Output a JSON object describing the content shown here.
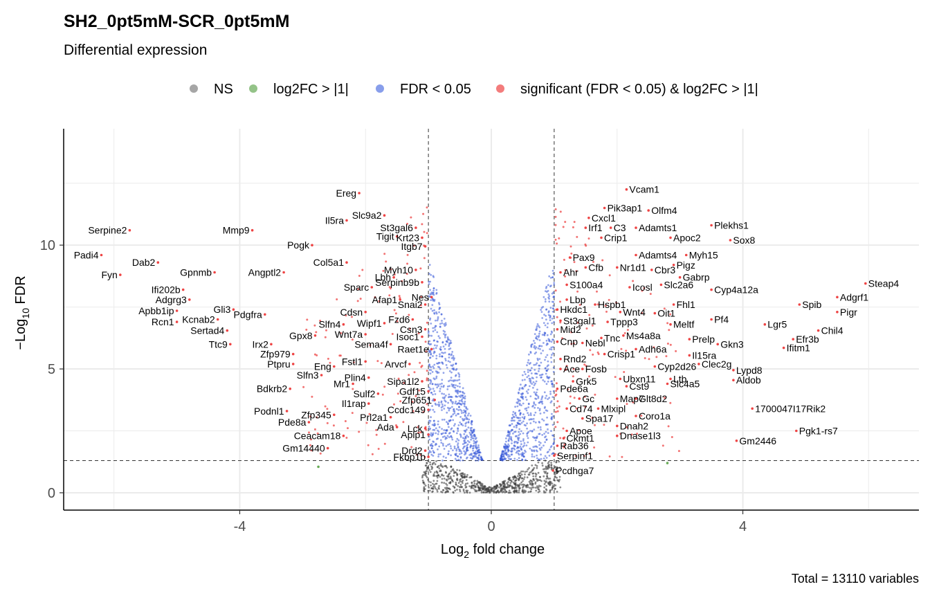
{
  "chart_data": {
    "type": "scatter",
    "title": "SH2_0pt5mM-SCR_0pt5mM",
    "subtitle": "Differential expression",
    "xlabel_main": "Log",
    "xlabel_sub": "2",
    "xlabel_rest": " fold change",
    "ylabel_prefix": "−Log",
    "ylabel_sub": "10",
    "ylabel_rest": " FDR",
    "caption": "Total = 13110 variables",
    "xlim": [
      -6.8,
      6.8
    ],
    "ylim": [
      -0.7,
      14.7
    ],
    "x_ticks": [
      -4,
      0,
      4
    ],
    "x_tick_labels": [
      "-4",
      "0",
      "4"
    ],
    "y_ticks": [
      0,
      5,
      10
    ],
    "y_tick_labels": [
      "0",
      "5",
      "10"
    ],
    "grid": true,
    "fc_cutoff": 1,
    "fdr_cutoff_log10": 1.3,
    "legend_position": "top",
    "legend": [
      {
        "name": "NS",
        "color": "#808080"
      },
      {
        "name": "log2FC > |1|",
        "color": "#66aa55"
      },
      {
        "name": "FDR < 0.05",
        "color": "#5575e3"
      },
      {
        "name": "significant (FDR < 0.05) & log2FC > |1|",
        "color": "#ee4444"
      }
    ],
    "background_clouds": [
      {
        "name": "NS",
        "color": "#404040",
        "shape": "ns"
      },
      {
        "name": "FDR < 0.05",
        "color": "#3a5bd9",
        "shape": "volcano"
      }
    ],
    "labeled_points": [
      {
        "label": "Vcam1",
        "x": 2.15,
        "y": 12.25
      },
      {
        "label": "Pik3ap1",
        "x": 1.8,
        "y": 11.5
      },
      {
        "label": "Olfm4",
        "x": 2.5,
        "y": 11.4
      },
      {
        "label": "Cxcl1",
        "x": 1.55,
        "y": 11.1
      },
      {
        "label": "Irf1",
        "x": 1.5,
        "y": 10.7
      },
      {
        "label": "C3",
        "x": 1.9,
        "y": 10.7
      },
      {
        "label": "Adamts1",
        "x": 2.3,
        "y": 10.7
      },
      {
        "label": "Plekhs1",
        "x": 3.5,
        "y": 10.8
      },
      {
        "label": "Crip1",
        "x": 1.75,
        "y": 10.3
      },
      {
        "label": "Apoc2",
        "x": 2.85,
        "y": 10.3
      },
      {
        "label": "Sox8",
        "x": 3.8,
        "y": 10.2
      },
      {
        "label": "Adamts4",
        "x": 2.3,
        "y": 9.6
      },
      {
        "label": "Myh15",
        "x": 3.1,
        "y": 9.6
      },
      {
        "label": "Pax9",
        "x": 1.25,
        "y": 9.5
      },
      {
        "label": "Pigz",
        "x": 2.9,
        "y": 9.2
      },
      {
        "label": "Cfb",
        "x": 1.5,
        "y": 9.1
      },
      {
        "label": "Nr1d1",
        "x": 2.0,
        "y": 9.1
      },
      {
        "label": "Cbr3",
        "x": 2.55,
        "y": 9.0
      },
      {
        "label": "Ahr",
        "x": 1.1,
        "y": 8.9
      },
      {
        "label": "Gabrp",
        "x": 3.0,
        "y": 8.7
      },
      {
        "label": "S100a4",
        "x": 1.2,
        "y": 8.4
      },
      {
        "label": "Icosl",
        "x": 2.2,
        "y": 8.3
      },
      {
        "label": "Slc2a6",
        "x": 2.7,
        "y": 8.4
      },
      {
        "label": "Cyp4a12a",
        "x": 3.5,
        "y": 8.2
      },
      {
        "label": "Lbp",
        "x": 1.2,
        "y": 7.8
      },
      {
        "label": "Hspb1",
        "x": 1.65,
        "y": 7.6
      },
      {
        "label": "Fhl1",
        "x": 2.9,
        "y": 7.6
      },
      {
        "label": "Hkdc1",
        "x": 1.05,
        "y": 7.4
      },
      {
        "label": "Wnt4",
        "x": 2.05,
        "y": 7.3
      },
      {
        "label": "Oit1",
        "x": 2.6,
        "y": 7.25
      },
      {
        "label": "Steap4",
        "x": 5.95,
        "y": 8.45
      },
      {
        "label": "Adgrf1",
        "x": 5.5,
        "y": 7.9
      },
      {
        "label": "Spib",
        "x": 4.9,
        "y": 7.6
      },
      {
        "label": "Pigr",
        "x": 5.5,
        "y": 7.3
      },
      {
        "label": "Pf4",
        "x": 3.5,
        "y": 7.0
      },
      {
        "label": "St3gal1",
        "x": 1.1,
        "y": 6.95
      },
      {
        "label": "Tppp3",
        "x": 1.85,
        "y": 6.9
      },
      {
        "label": "Meltf",
        "x": 2.85,
        "y": 6.8
      },
      {
        "label": "Lgr5",
        "x": 4.35,
        "y": 6.8
      },
      {
        "label": "Mid2",
        "x": 1.05,
        "y": 6.6
      },
      {
        "label": "Chil4",
        "x": 5.2,
        "y": 6.55
      },
      {
        "label": "Ms4a8a",
        "x": 2.1,
        "y": 6.35
      },
      {
        "label": "Tnc",
        "x": 1.75,
        "y": 6.25
      },
      {
        "label": "Prelp",
        "x": 3.15,
        "y": 6.2
      },
      {
        "label": "Efr3b",
        "x": 4.8,
        "y": 6.2
      },
      {
        "label": "Cnp",
        "x": 1.05,
        "y": 6.1
      },
      {
        "label": "Nebl",
        "x": 1.45,
        "y": 6.05
      },
      {
        "label": "Gkn3",
        "x": 3.6,
        "y": 6.0
      },
      {
        "label": "Adh6a",
        "x": 2.3,
        "y": 5.8
      },
      {
        "label": "Ifitm1",
        "x": 4.65,
        "y": 5.85
      },
      {
        "label": "Crisp1",
        "x": 1.8,
        "y": 5.6
      },
      {
        "label": "Il15ra",
        "x": 3.15,
        "y": 5.55
      },
      {
        "label": "Rnd2",
        "x": 1.1,
        "y": 5.4
      },
      {
        "label": "Clec2g",
        "x": 3.3,
        "y": 5.2
      },
      {
        "label": "Cyp2d26",
        "x": 2.6,
        "y": 5.1
      },
      {
        "label": "Ace",
        "x": 1.1,
        "y": 5.0
      },
      {
        "label": "Fosb",
        "x": 1.45,
        "y": 5.0
      },
      {
        "label": "Lypd8",
        "x": 3.85,
        "y": 4.95
      },
      {
        "label": "Ltb",
        "x": 2.85,
        "y": 4.6
      },
      {
        "label": "Grk5",
        "x": 1.3,
        "y": 4.5
      },
      {
        "label": "Ubxn11",
        "x": 2.05,
        "y": 4.6
      },
      {
        "label": "Aldob",
        "x": 3.85,
        "y": 4.55
      },
      {
        "label": "Slc4a5",
        "x": 2.8,
        "y": 4.4
      },
      {
        "label": "Pde6a",
        "x": 1.05,
        "y": 4.2
      },
      {
        "label": "Cst9",
        "x": 2.15,
        "y": 4.3
      },
      {
        "label": "Map7",
        "x": 2.0,
        "y": 3.8
      },
      {
        "label": "Glt8d2",
        "x": 2.3,
        "y": 3.8
      },
      {
        "label": "Gc",
        "x": 1.4,
        "y": 3.8
      },
      {
        "label": "Cd74",
        "x": 1.2,
        "y": 3.4
      },
      {
        "label": "Mlxipl",
        "x": 1.7,
        "y": 3.4
      },
      {
        "label": "Coro1a",
        "x": 2.3,
        "y": 3.1
      },
      {
        "label": "Spa17",
        "x": 1.45,
        "y": 3.0
      },
      {
        "label": "Dnah2",
        "x": 2.0,
        "y": 2.7
      },
      {
        "label": "Dnase1l3",
        "x": 2.0,
        "y": 2.3
      },
      {
        "label": "Apoe",
        "x": 1.2,
        "y": 2.5
      },
      {
        "label": "Ckmt1",
        "x": 1.15,
        "y": 2.2
      },
      {
        "label": "Rab36",
        "x": 1.05,
        "y": 1.9
      },
      {
        "label": "Serpinf1",
        "x": 1.0,
        "y": 1.5
      },
      {
        "label": "Pcdhga7",
        "x": 0.98,
        "y": 0.9
      },
      {
        "label": "1700047I17Rik2",
        "x": 4.15,
        "y": 3.4
      },
      {
        "label": "Pgk1-rs7",
        "x": 4.85,
        "y": 2.5
      },
      {
        "label": "Gm2446",
        "x": 3.9,
        "y": 2.1
      },
      {
        "label": "Ereg",
        "x": -2.1,
        "y": 12.1
      },
      {
        "label": "Slc9a2",
        "x": -1.7,
        "y": 11.2
      },
      {
        "label": "Il5ra",
        "x": -2.3,
        "y": 11.0
      },
      {
        "label": "St3gal6",
        "x": -1.2,
        "y": 10.7
      },
      {
        "label": "Tigit",
        "x": -1.5,
        "y": 10.35
      },
      {
        "label": "Krt23",
        "x": -1.1,
        "y": 10.3
      },
      {
        "label": "Itgb7",
        "x": -1.05,
        "y": 9.95
      },
      {
        "label": "Serpine2",
        "x": -5.75,
        "y": 10.6
      },
      {
        "label": "Mmp9",
        "x": -3.8,
        "y": 10.6
      },
      {
        "label": "Pogk",
        "x": -2.85,
        "y": 10.0
      },
      {
        "label": "Col5a1",
        "x": -2.3,
        "y": 9.3
      },
      {
        "label": "Padi4",
        "x": -6.2,
        "y": 9.6
      },
      {
        "label": "Myh10",
        "x": -1.2,
        "y": 9.0
      },
      {
        "label": "Lbh",
        "x": -1.55,
        "y": 8.7
      },
      {
        "label": "Fyn",
        "x": -5.9,
        "y": 8.8
      },
      {
        "label": "Dab2",
        "x": -5.3,
        "y": 9.3
      },
      {
        "label": "Gpnmb",
        "x": -4.4,
        "y": 8.9
      },
      {
        "label": "Angptl2",
        "x": -3.3,
        "y": 8.9
      },
      {
        "label": "Serpinb9b",
        "x": -1.1,
        "y": 8.5
      },
      {
        "label": "Ifi202b",
        "x": -4.9,
        "y": 8.2
      },
      {
        "label": "Sparc",
        "x": -1.9,
        "y": 8.3
      },
      {
        "label": "Nes",
        "x": -0.95,
        "y": 7.9
      },
      {
        "label": "Afap1",
        "x": -1.45,
        "y": 7.8
      },
      {
        "label": "Adgrg3",
        "x": -4.8,
        "y": 7.8
      },
      {
        "label": "Snai2",
        "x": -1.05,
        "y": 7.6
      },
      {
        "label": "Gli3",
        "x": -4.1,
        "y": 7.4
      },
      {
        "label": "Apbb1ip",
        "x": -5.0,
        "y": 7.35
      },
      {
        "label": "Cdsn",
        "x": -2.0,
        "y": 7.3
      },
      {
        "label": "Pdgfra",
        "x": -3.6,
        "y": 7.2
      },
      {
        "label": "Kcnab2",
        "x": -4.35,
        "y": 7.0
      },
      {
        "label": "Fzd6",
        "x": -1.25,
        "y": 7.0
      },
      {
        "label": "Rcn1",
        "x": -5.0,
        "y": 6.9
      },
      {
        "label": "Wipf1",
        "x": -1.7,
        "y": 6.85
      },
      {
        "label": "Slfn4",
        "x": -2.35,
        "y": 6.8
      },
      {
        "label": "Csn3",
        "x": -1.05,
        "y": 6.6
      },
      {
        "label": "Sertad4",
        "x": -4.2,
        "y": 6.55
      },
      {
        "label": "Wnt7a",
        "x": -2.0,
        "y": 6.4
      },
      {
        "label": "Gpx8",
        "x": -2.8,
        "y": 6.35
      },
      {
        "label": "Isoc1",
        "x": -1.1,
        "y": 6.3
      },
      {
        "label": "Ttc9",
        "x": -4.15,
        "y": 6.0
      },
      {
        "label": "Irx2",
        "x": -3.5,
        "y": 6.0
      },
      {
        "label": "Sema4f",
        "x": -1.6,
        "y": 6.0
      },
      {
        "label": "Raet1e",
        "x": -0.95,
        "y": 5.8
      },
      {
        "label": "Zfp979",
        "x": -3.15,
        "y": 5.6
      },
      {
        "label": "Fstl1",
        "x": -2.0,
        "y": 5.3
      },
      {
        "label": "Arvcf",
        "x": -1.3,
        "y": 5.2
      },
      {
        "label": "Ptpru",
        "x": -3.15,
        "y": 5.2
      },
      {
        "label": "Eng",
        "x": -2.5,
        "y": 5.1
      },
      {
        "label": "Slfn3",
        "x": -2.7,
        "y": 4.75
      },
      {
        "label": "Plin4",
        "x": -1.95,
        "y": 4.65
      },
      {
        "label": "Sipa1l2",
        "x": -1.1,
        "y": 4.5
      },
      {
        "label": "Mr1",
        "x": -2.2,
        "y": 4.4
      },
      {
        "label": "Bdkrb2",
        "x": -3.2,
        "y": 4.2
      },
      {
        "label": "Gdf15",
        "x": -1.0,
        "y": 4.1
      },
      {
        "label": "Sulf2",
        "x": -1.8,
        "y": 4.0
      },
      {
        "label": "Zfp651",
        "x": -0.9,
        "y": 3.75
      },
      {
        "label": "Il1rap",
        "x": -1.95,
        "y": 3.6
      },
      {
        "label": "Podnl1",
        "x": -3.25,
        "y": 3.3
      },
      {
        "label": "Ccdc149",
        "x": -1.0,
        "y": 3.35
      },
      {
        "label": "Zfp345",
        "x": -2.5,
        "y": 3.15
      },
      {
        "label": "Prl2a1",
        "x": -1.6,
        "y": 3.05
      },
      {
        "label": "Ada",
        "x": -1.5,
        "y": 2.65
      },
      {
        "label": "Lck",
        "x": -1.05,
        "y": 2.6
      },
      {
        "label": "Pde8a",
        "x": -2.9,
        "y": 2.85
      },
      {
        "label": "Ceacam18",
        "x": -2.35,
        "y": 2.3
      },
      {
        "label": "Aplp1",
        "x": -1.0,
        "y": 2.35
      },
      {
        "label": "Drd2",
        "x": -1.05,
        "y": 1.7
      },
      {
        "label": "Fkbp1b",
        "x": -1.0,
        "y": 1.45
      },
      {
        "label": "Gm14440",
        "x": -2.6,
        "y": 1.8
      }
    ]
  }
}
